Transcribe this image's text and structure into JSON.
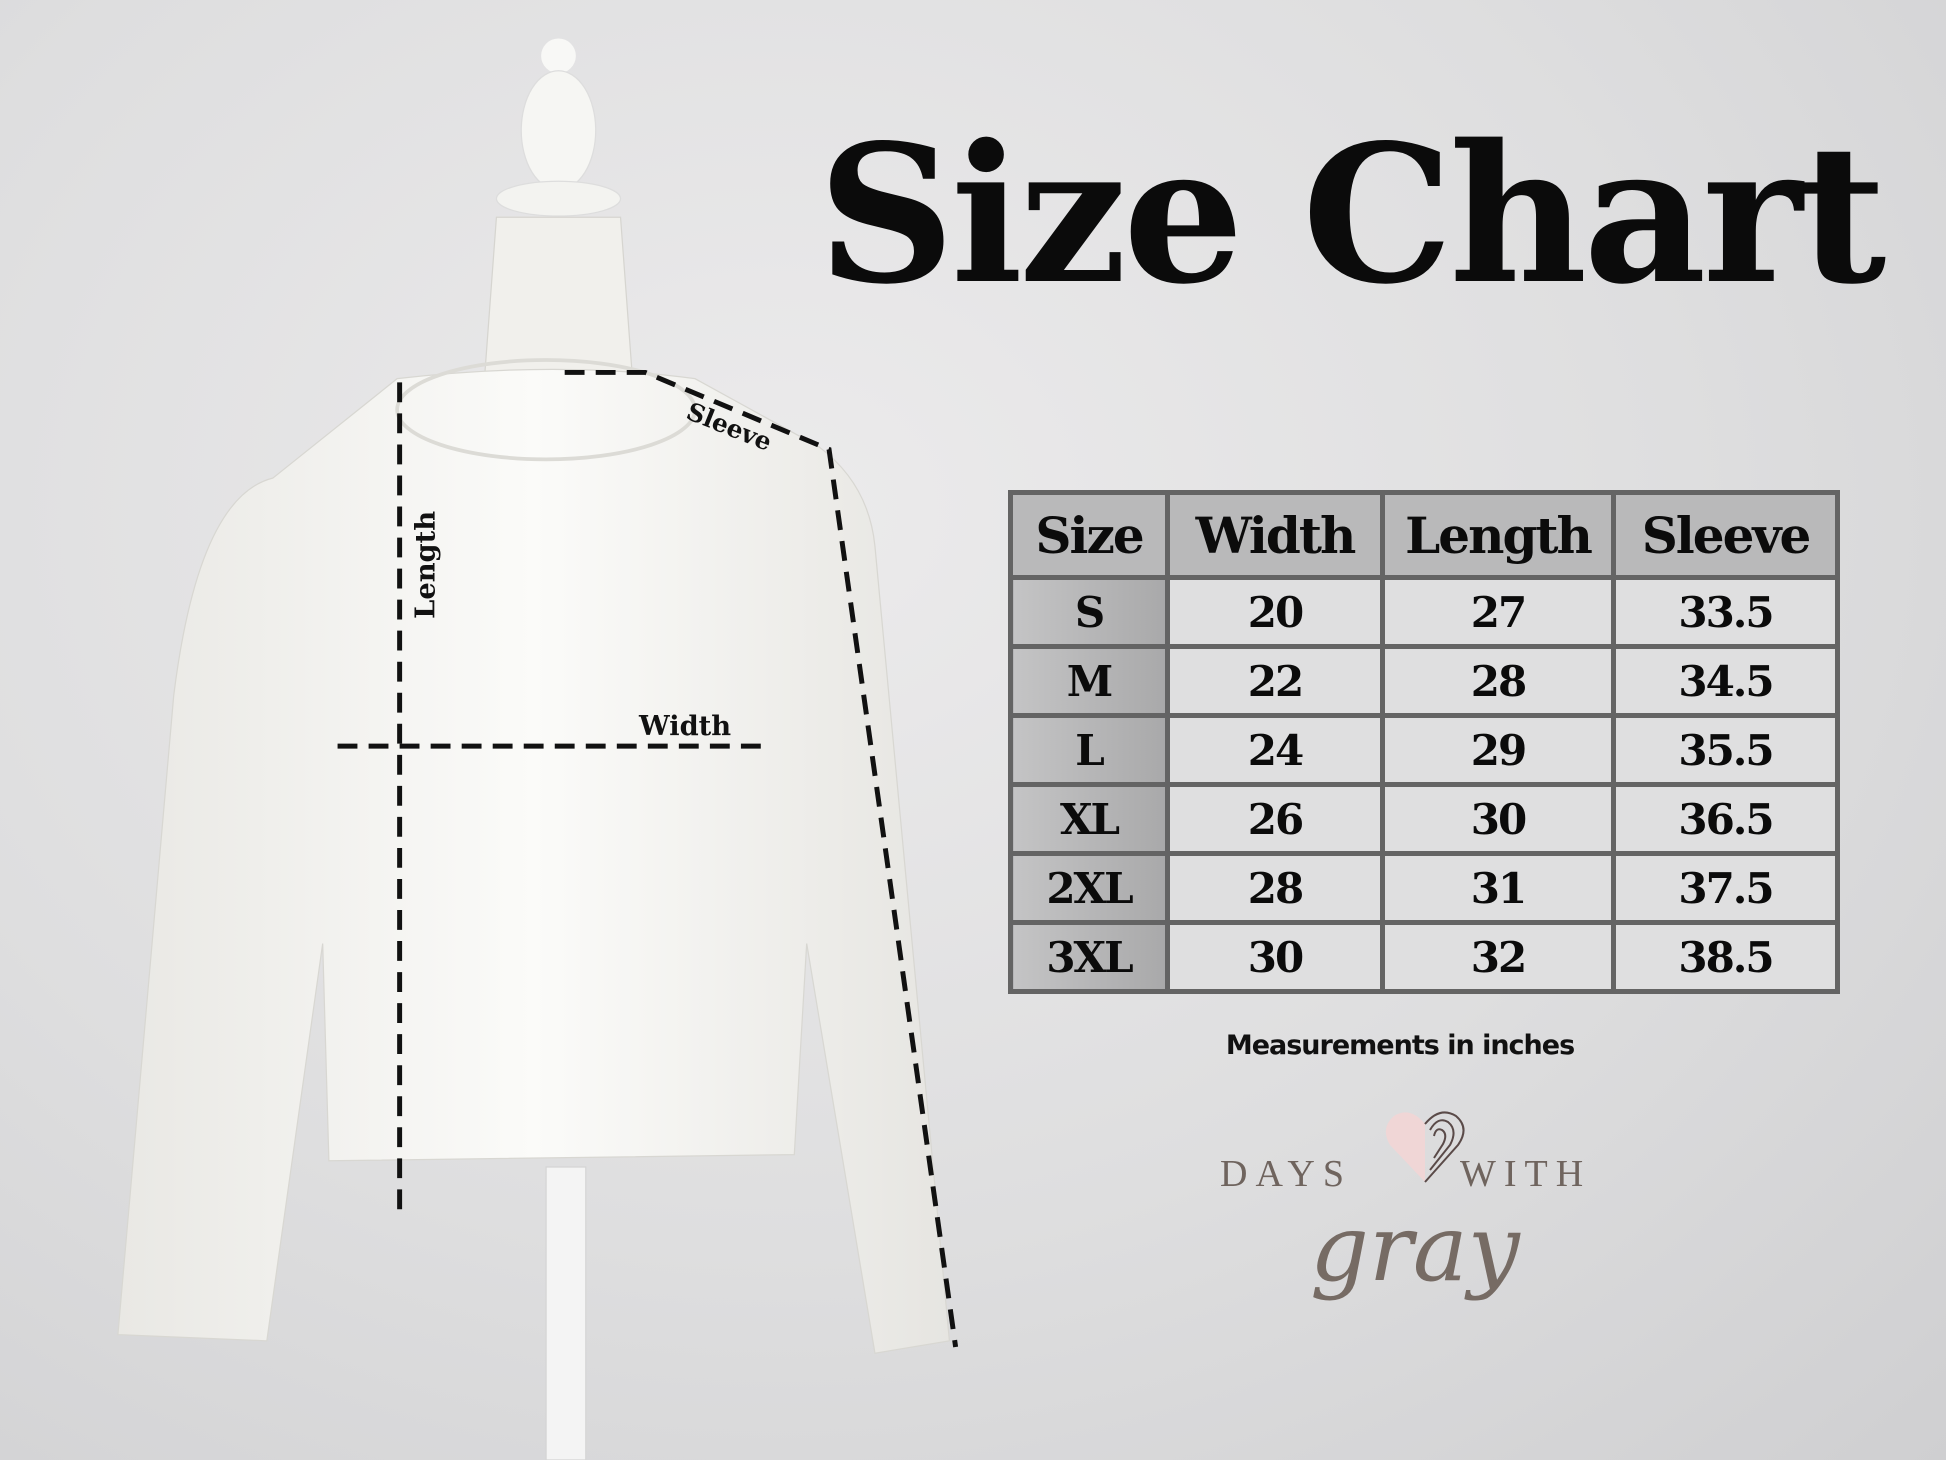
{
  "title": "Size Chart",
  "diagram_labels": {
    "length": "Length",
    "width": "Width",
    "sleeve": "Sleeve"
  },
  "table": {
    "headers": [
      "Size",
      "Width",
      "Length",
      "Sleeve"
    ],
    "rows": [
      [
        "S",
        "20",
        "27",
        "33.5"
      ],
      [
        "M",
        "22",
        "28",
        "34.5"
      ],
      [
        "L",
        "24",
        "29",
        "35.5"
      ],
      [
        "XL",
        "26",
        "30",
        "36.5"
      ],
      [
        "2XL",
        "28",
        "31",
        "37.5"
      ],
      [
        "3XL",
        "30",
        "32",
        "38.5"
      ]
    ]
  },
  "note": "Measurements in inches",
  "logo": {
    "line1_left": "DAYS",
    "line1_right": "WITH",
    "line2": "gray",
    "icon": "fingerprint-heart-icon"
  },
  "colors": {
    "text": "#0b0b0b",
    "table_border": "#646464",
    "logo": "#6f645e",
    "heart_pink": "#f0d6d6"
  }
}
